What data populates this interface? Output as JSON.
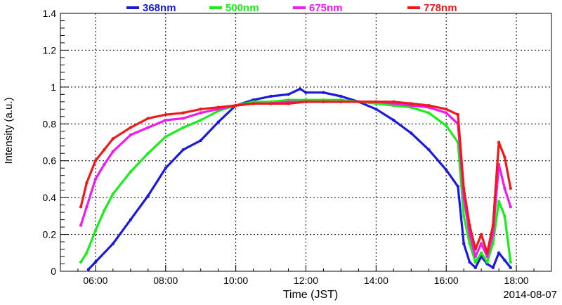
{
  "chart_data": {
    "type": "scatter",
    "xlabel": "Time (JST)",
    "ylabel": "Intensity (a.u.)",
    "date_label": "2014-08-07",
    "xlim": [
      "05:00",
      "19:00"
    ],
    "ylim": [
      0,
      1.4
    ],
    "x_ticks": [
      "06:00",
      "08:00",
      "10:00",
      "12:00",
      "14:00",
      "16:00",
      "18:00"
    ],
    "y_ticks": [
      "0",
      "0.2",
      "0.4",
      "0.6",
      "0.8",
      "1",
      "1.2",
      "1.4"
    ],
    "grid": true,
    "legend_position": "top",
    "series": [
      {
        "name": "368nm",
        "color": "#1a1adc",
        "x": [
          "05:48",
          "06:00",
          "06:30",
          "07:00",
          "07:30",
          "08:00",
          "08:30",
          "09:00",
          "09:30",
          "10:00",
          "10:30",
          "11:00",
          "11:30",
          "11:50",
          "12:00",
          "12:30",
          "13:00",
          "13:30",
          "14:00",
          "14:30",
          "15:00",
          "15:30",
          "16:00",
          "16:20",
          "16:30",
          "16:40",
          "16:50",
          "17:00",
          "17:10",
          "17:20",
          "17:30",
          "17:40",
          "17:50"
        ],
        "y": [
          0.01,
          0.05,
          0.15,
          0.28,
          0.41,
          0.56,
          0.66,
          0.71,
          0.81,
          0.9,
          0.93,
          0.95,
          0.96,
          0.99,
          0.97,
          0.97,
          0.95,
          0.92,
          0.88,
          0.82,
          0.75,
          0.66,
          0.55,
          0.46,
          0.15,
          0.05,
          0.02,
          0.08,
          0.04,
          0.02,
          0.1,
          0.06,
          0.02
        ]
      },
      {
        "name": "500nm",
        "color": "#1aee1a",
        "x": [
          "05:35",
          "05:45",
          "06:00",
          "06:15",
          "06:30",
          "07:00",
          "07:30",
          "08:00",
          "08:30",
          "09:00",
          "09:30",
          "10:00",
          "10:30",
          "11:00",
          "11:30",
          "12:00",
          "12:30",
          "13:00",
          "13:30",
          "14:00",
          "14:30",
          "15:00",
          "15:30",
          "16:00",
          "16:20",
          "16:30",
          "16:40",
          "16:50",
          "17:00",
          "17:10",
          "17:20",
          "17:30",
          "17:40",
          "17:50"
        ],
        "y": [
          0.05,
          0.1,
          0.22,
          0.33,
          0.42,
          0.54,
          0.64,
          0.73,
          0.78,
          0.82,
          0.87,
          0.9,
          0.92,
          0.92,
          0.93,
          0.93,
          0.93,
          0.93,
          0.92,
          0.91,
          0.9,
          0.89,
          0.86,
          0.79,
          0.7,
          0.3,
          0.15,
          0.05,
          0.1,
          0.05,
          0.15,
          0.38,
          0.3,
          0.05
        ]
      },
      {
        "name": "675nm",
        "color": "#ee1aee",
        "x": [
          "05:35",
          "05:45",
          "06:00",
          "06:15",
          "06:30",
          "07:00",
          "07:30",
          "08:00",
          "08:30",
          "09:00",
          "09:30",
          "10:00",
          "10:30",
          "11:00",
          "11:30",
          "12:00",
          "12:30",
          "13:00",
          "13:30",
          "14:00",
          "14:30",
          "15:00",
          "15:30",
          "16:00",
          "16:20",
          "16:30",
          "16:40",
          "16:50",
          "17:00",
          "17:10",
          "17:20",
          "17:30",
          "17:40",
          "17:50"
        ],
        "y": [
          0.25,
          0.35,
          0.5,
          0.58,
          0.65,
          0.74,
          0.78,
          0.82,
          0.83,
          0.86,
          0.88,
          0.9,
          0.91,
          0.91,
          0.92,
          0.92,
          0.92,
          0.92,
          0.92,
          0.92,
          0.91,
          0.9,
          0.89,
          0.86,
          0.8,
          0.4,
          0.2,
          0.08,
          0.15,
          0.08,
          0.2,
          0.58,
          0.45,
          0.35
        ]
      },
      {
        "name": "778nm",
        "color": "#ee1a1a",
        "x": [
          "05:35",
          "05:45",
          "06:00",
          "06:15",
          "06:30",
          "07:00",
          "07:30",
          "08:00",
          "08:30",
          "09:00",
          "09:30",
          "10:00",
          "10:30",
          "11:00",
          "11:30",
          "12:00",
          "12:30",
          "13:00",
          "13:30",
          "14:00",
          "14:30",
          "15:00",
          "15:30",
          "16:00",
          "16:20",
          "16:30",
          "16:40",
          "16:50",
          "17:00",
          "17:10",
          "17:20",
          "17:30",
          "17:40",
          "17:50"
        ],
        "y": [
          0.35,
          0.48,
          0.6,
          0.66,
          0.72,
          0.78,
          0.83,
          0.85,
          0.86,
          0.88,
          0.89,
          0.9,
          0.91,
          0.91,
          0.91,
          0.92,
          0.92,
          0.92,
          0.92,
          0.92,
          0.92,
          0.91,
          0.9,
          0.88,
          0.85,
          0.45,
          0.25,
          0.12,
          0.2,
          0.1,
          0.25,
          0.7,
          0.62,
          0.45
        ]
      }
    ]
  }
}
